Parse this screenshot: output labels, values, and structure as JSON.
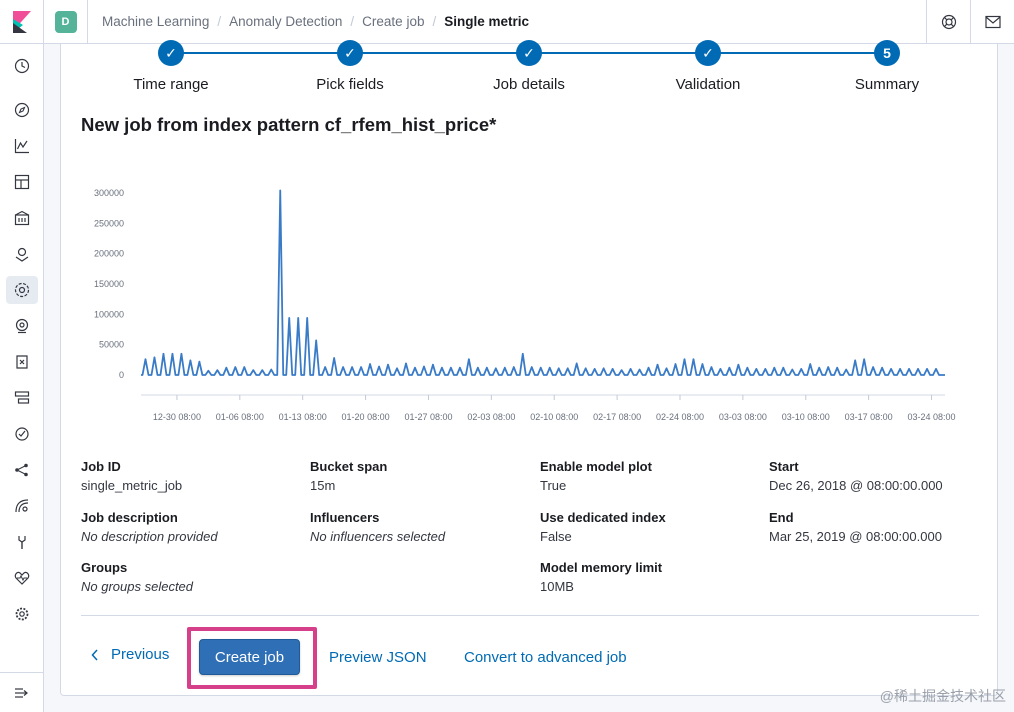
{
  "breadcrumbs": [
    "Machine Learning",
    "Anomaly Detection",
    "Create job",
    "Single metric"
  ],
  "space_initial": "D",
  "steps": [
    {
      "label": "Time range",
      "state": "complete",
      "display": "✓"
    },
    {
      "label": "Pick fields",
      "state": "complete",
      "display": "✓"
    },
    {
      "label": "Job details",
      "state": "complete",
      "display": "✓"
    },
    {
      "label": "Validation",
      "state": "complete",
      "display": "✓"
    },
    {
      "label": "Summary",
      "state": "current",
      "display": "5"
    }
  ],
  "page_title": "New job from index pattern cf_rfem_hist_price*",
  "chart_data": {
    "type": "line",
    "color": "#3a7bc8",
    "y_ticks": [
      "300000",
      "250000",
      "200000",
      "150000",
      "100000",
      "50000",
      "0"
    ],
    "y_tick_values": [
      300000,
      250000,
      200000,
      150000,
      100000,
      50000,
      0
    ],
    "ylim": [
      0,
      310000
    ],
    "x_tick_labels": [
      "12-30 08:00",
      "01-06 08:00",
      "01-13 08:00",
      "01-20 08:00",
      "01-27 08:00",
      "02-03 08:00",
      "02-10 08:00",
      "02-17 08:00",
      "02-24 08:00",
      "03-03 08:00",
      "03-10 08:00",
      "03-17 08:00",
      "03-24 08:00"
    ],
    "x_ticks_day_offset": [
      4,
      11,
      18,
      25,
      32,
      39,
      46,
      53,
      60,
      67,
      74,
      81,
      88
    ],
    "x_range_days": [
      0,
      89.5
    ],
    "series": [
      {
        "x": [
          0.5,
          1.5,
          2.5,
          3.5,
          4.5,
          5.5,
          6.5,
          7.5,
          8.5,
          9.5,
          10.5,
          11.5,
          12.5,
          13.5,
          14.5,
          15.5,
          16.5,
          17.5,
          18.5,
          19.5,
          20.5,
          21.5,
          22.5,
          23.5,
          24.5,
          25.5,
          26.5,
          27.5,
          28.5,
          29.5,
          30.5,
          31.5,
          32.5,
          33.5,
          34.5,
          35.5,
          36.5,
          37.5,
          38.5,
          39.5,
          40.5,
          41.5,
          42.5,
          43.5,
          44.5,
          45.5,
          46.5,
          47.5,
          48.5,
          49.5,
          50.5,
          51.5,
          52.5,
          53.5,
          54.5,
          55.5,
          56.5,
          57.5,
          58.5,
          59.5,
          60.5,
          61.5,
          62.5,
          63.5,
          64.5,
          65.5,
          66.5,
          67.5,
          68.5,
          69.5,
          70.5,
          71.5,
          72.5,
          73.5,
          74.5,
          75.5,
          76.5,
          77.5,
          78.5,
          79.5,
          80.5,
          81.5,
          82.5,
          83.5,
          84.5,
          85.5,
          86.5,
          87.5,
          88.5
        ],
        "y": [
          26000,
          29000,
          35000,
          35000,
          35000,
          24000,
          22000,
          7000,
          8000,
          12000,
          13000,
          13000,
          8000,
          8000,
          9000,
          304000,
          94000,
          94000,
          94000,
          57000,
          13000,
          28000,
          13000,
          13000,
          13000,
          18000,
          14000,
          17000,
          11000,
          19000,
          12000,
          14000,
          17000,
          12000,
          12000,
          12000,
          26000,
          12000,
          12000,
          11000,
          12000,
          13000,
          35000,
          13000,
          12000,
          12000,
          11000,
          11000,
          19000,
          11000,
          10000,
          11000,
          10000,
          8000,
          10000,
          9000,
          12000,
          17000,
          11000,
          18000,
          26000,
          26000,
          18000,
          13000,
          10000,
          12000,
          17000,
          12000,
          10000,
          10000,
          12000,
          12000,
          9000,
          10000,
          18000,
          12000,
          13000,
          12000,
          9000,
          24000,
          26000,
          13000,
          12000,
          10000,
          10000,
          10000,
          10000,
          10000,
          10000
        ]
      }
    ]
  },
  "summary": {
    "job_id_label": "Job ID",
    "job_id": "single_metric_job",
    "bucket_span_label": "Bucket span",
    "bucket_span": "15m",
    "model_plot_label": "Enable model plot",
    "model_plot": "True",
    "start_label": "Start",
    "start": "Dec 26, 2018 @ 08:00:00.000",
    "description_label": "Job description",
    "description": "No description provided",
    "influencers_label": "Influencers",
    "influencers": "No influencers selected",
    "dedicated_index_label": "Use dedicated index",
    "dedicated_index": "False",
    "end_label": "End",
    "end": "Mar 25, 2019 @ 08:00:00.000",
    "groups_label": "Groups",
    "groups": "No groups selected",
    "memory_label": "Model memory limit",
    "memory": "10MB"
  },
  "buttons": {
    "previous": "Previous",
    "create": "Create job",
    "preview_json": "Preview JSON",
    "convert": "Convert to advanced job"
  },
  "watermark": "@稀土掘金技术社区",
  "colors": {
    "primary": "#006bb4",
    "highlight": "#d6408a",
    "space": "#54b399"
  }
}
